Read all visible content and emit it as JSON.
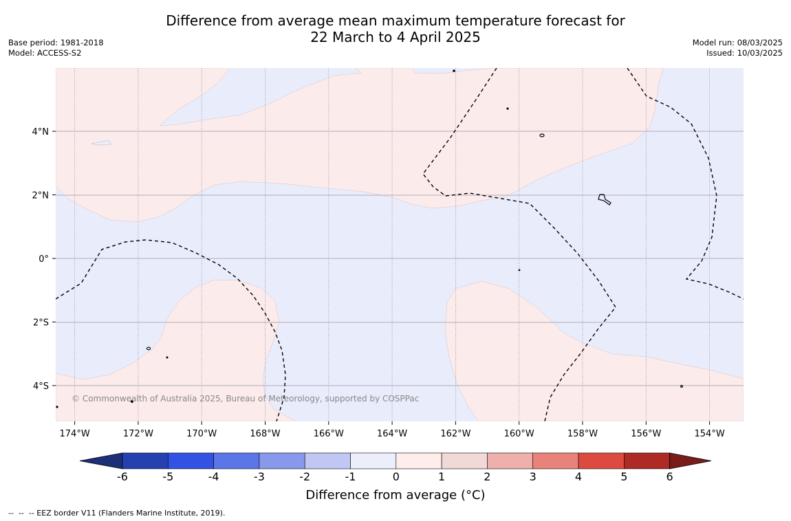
{
  "header": {
    "title_line1": "Difference from average mean maximum temperature forecast for",
    "title_line2": "22 March to 4 April 2025",
    "base_period": "Base period: 1981-2018",
    "model": "Model: ACCESS-S2",
    "model_run": "Model run: 08/03/2025",
    "issued": "Issued: 10/03/2025"
  },
  "map": {
    "longitudes": [
      "174°W",
      "172°W",
      "170°W",
      "168°W",
      "166°W",
      "164°W",
      "162°W",
      "160°W",
      "158°W",
      "156°W",
      "154°W"
    ],
    "latitudes": [
      "4°N",
      "2°N",
      "0°",
      "2°S",
      "4°S"
    ],
    "copyright": "© Commonwealth of Australia 2025, Bureau of Meteorology, supported by COSPPac",
    "colors": {
      "cool": "#e9ecfb",
      "warm": "#fbebea",
      "grid": "#9a9aa8"
    }
  },
  "colorbar": {
    "labels": [
      "-6",
      "-5",
      "-4",
      "-3",
      "-2",
      "-1",
      "0",
      "1",
      "2",
      "3",
      "4",
      "5",
      "6"
    ],
    "colors": [
      "#2541b0",
      "#3252e4",
      "#5a76e7",
      "#8898eb",
      "#c1c7f5",
      "#eceefb",
      "#fdeeec",
      "#f1d9d8",
      "#efafab",
      "#e8837b",
      "#dd4a40",
      "#ae2a24"
    ],
    "low_extend_color": "#1d2f78",
    "high_extend_color": "#7a1c19",
    "title": "Difference from average (°C)"
  },
  "footnote": "--  --  -- EEZ border V11 (Flanders Marine Institute, 2019)."
}
